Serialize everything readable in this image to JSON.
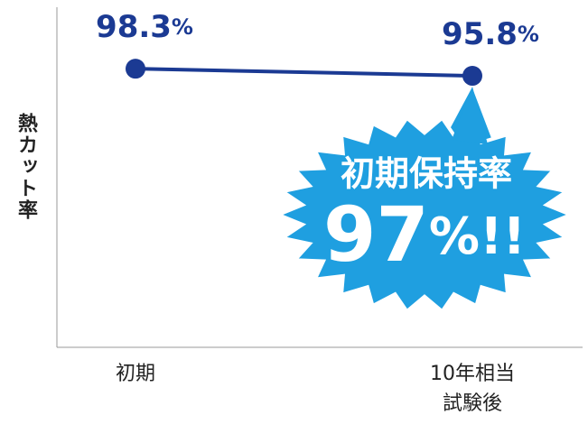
{
  "chart_data": {
    "type": "line",
    "y_label": "熱カット率",
    "categories": [
      "初期",
      "10年相当\n試験後"
    ],
    "series": [
      {
        "name": null,
        "color": "#1b3a93",
        "values": [
          98.3,
          95.8
        ],
        "value_labels": [
          "98.3%",
          "95.8%"
        ]
      }
    ],
    "ylim": [
      0,
      120
    ],
    "annotations": {
      "callout_title": "初期保持率",
      "callout_value": "97%!!",
      "color": "#1f9fe0"
    }
  }
}
